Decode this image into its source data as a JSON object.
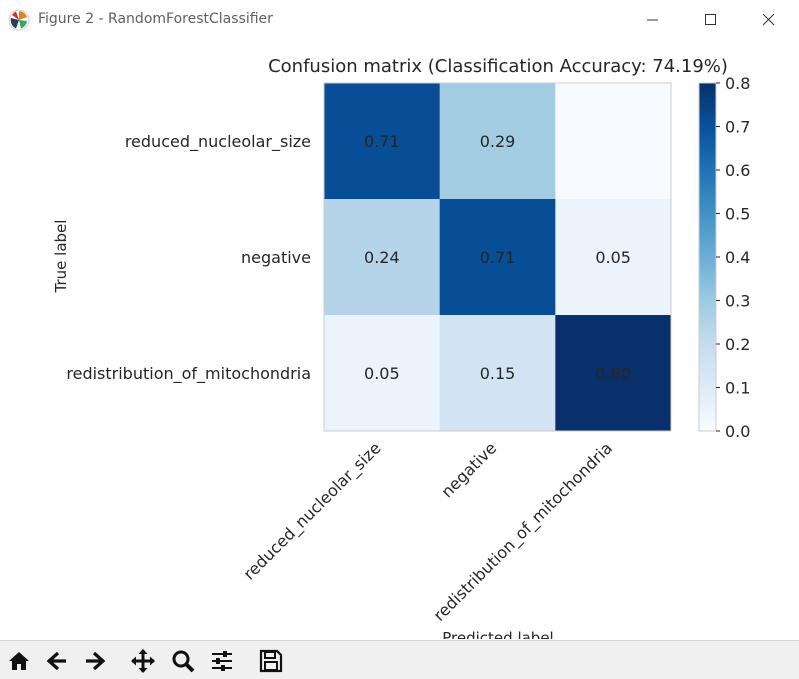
{
  "window": {
    "title": "Figure 2 - RandomForestClassifier",
    "app_icon": "matplotlib-icon",
    "controls": [
      "minimize-icon",
      "maximize-icon",
      "close-icon"
    ]
  },
  "toolbar": {
    "buttons": [
      "home-icon",
      "back-arrow-icon",
      "forward-arrow-icon",
      "pan-icon",
      "zoom-icon",
      "configure-subplots-icon",
      "save-icon"
    ]
  },
  "chart_data": {
    "type": "heatmap",
    "title": "Confusion matrix (Classification Accuracy: 74.19%)",
    "xlabel": "Predicted label",
    "ylabel": "True label",
    "row_labels": [
      "reduced_nucleolar_size",
      "negative",
      "redistribution_of_mitochondria"
    ],
    "col_labels": [
      "reduced_nucleolar_size",
      "negative",
      "redistribution_of_mitochondria"
    ],
    "values": [
      [
        0.71,
        0.29,
        0.0
      ],
      [
        0.24,
        0.71,
        0.05
      ],
      [
        0.05,
        0.15,
        0.8
      ]
    ],
    "cell_text": [
      [
        "0.71",
        "0.29",
        ""
      ],
      [
        "0.24",
        "0.71",
        "0.05"
      ],
      [
        "0.05",
        "0.15",
        "0.80"
      ]
    ],
    "colormap": "Blues",
    "colorbar": {
      "range": [
        0.0,
        0.8
      ],
      "ticks": [
        0.0,
        0.1,
        0.2,
        0.3,
        0.4,
        0.5,
        0.6,
        0.7,
        0.8
      ],
      "tick_labels": [
        "0.0",
        "0.1",
        "0.2",
        "0.3",
        "0.4",
        "0.5",
        "0.6",
        "0.7",
        "0.8"
      ]
    },
    "grid": false
  }
}
